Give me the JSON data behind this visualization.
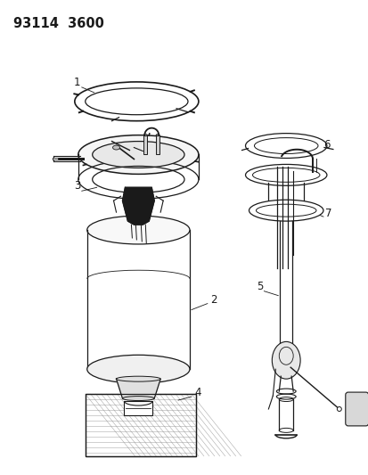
{
  "title": "93114  3600",
  "bg_color": "#ffffff",
  "fg_color": "#1a1a1a",
  "title_fontsize": 10.5,
  "label_fontsize": 8.5,
  "figsize": [
    4.14,
    5.33
  ],
  "dpi": 100,
  "lw": 0.9
}
